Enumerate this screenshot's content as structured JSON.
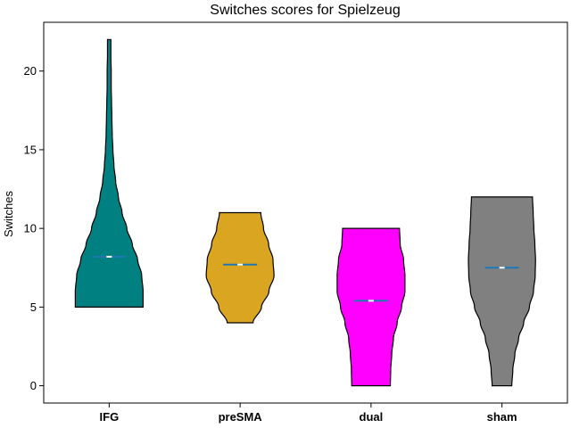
{
  "chart_data": {
    "type": "violin",
    "title": "Switches scores for Spielzeug",
    "xlabel": "",
    "ylabel": "Switches",
    "ylim": [
      -1.1,
      23.1
    ],
    "yticks": [
      0,
      5,
      10,
      15,
      20
    ],
    "categories": [
      "IFG",
      "preSMA",
      "dual",
      "sham"
    ],
    "series": [
      {
        "name": "IFG",
        "color": "#008080",
        "min": 5,
        "max": 22,
        "mean": 8.2,
        "profile": [
          [
            5,
            1.0
          ],
          [
            6,
            1.0
          ],
          [
            7,
            0.96
          ],
          [
            8,
            0.84
          ],
          [
            9,
            0.68
          ],
          [
            10,
            0.52
          ],
          [
            11,
            0.38
          ],
          [
            12,
            0.27
          ],
          [
            13,
            0.19
          ],
          [
            14,
            0.14
          ],
          [
            15,
            0.11
          ],
          [
            16,
            0.09
          ],
          [
            17,
            0.08
          ],
          [
            18,
            0.07
          ],
          [
            19,
            0.06
          ],
          [
            20,
            0.06
          ],
          [
            21,
            0.05
          ],
          [
            22,
            0.05
          ]
        ]
      },
      {
        "name": "preSMA",
        "color": "#DAA520",
        "min": 4,
        "max": 11,
        "mean": 7.7,
        "profile": [
          [
            4,
            0.38
          ],
          [
            5,
            0.63
          ],
          [
            6,
            0.85
          ],
          [
            7,
            1.0
          ],
          [
            8,
            0.97
          ],
          [
            9,
            0.84
          ],
          [
            10,
            0.69
          ],
          [
            11,
            0.61
          ]
        ]
      },
      {
        "name": "dual",
        "color": "#FF00FF",
        "min": 0,
        "max": 10,
        "mean": 5.4,
        "profile": [
          [
            0,
            0.57
          ],
          [
            1,
            0.58
          ],
          [
            2,
            0.61
          ],
          [
            3,
            0.66
          ],
          [
            4,
            0.77
          ],
          [
            5,
            0.9
          ],
          [
            6,
            1.0
          ],
          [
            7,
            1.0
          ],
          [
            8,
            0.96
          ],
          [
            9,
            0.86
          ],
          [
            10,
            0.84
          ]
        ]
      },
      {
        "name": "sham",
        "color": "#808080",
        "min": 0,
        "max": 12,
        "mean": 7.5,
        "profile": [
          [
            0,
            0.29
          ],
          [
            1,
            0.32
          ],
          [
            2,
            0.38
          ],
          [
            3,
            0.49
          ],
          [
            4,
            0.64
          ],
          [
            5,
            0.81
          ],
          [
            6,
            0.93
          ],
          [
            7,
            0.98
          ],
          [
            8,
            0.99
          ],
          [
            9,
            0.97
          ],
          [
            10,
            0.94
          ],
          [
            11,
            0.92
          ],
          [
            12,
            0.9
          ]
        ]
      }
    ],
    "mean_marker_color": "#1f77b4"
  }
}
